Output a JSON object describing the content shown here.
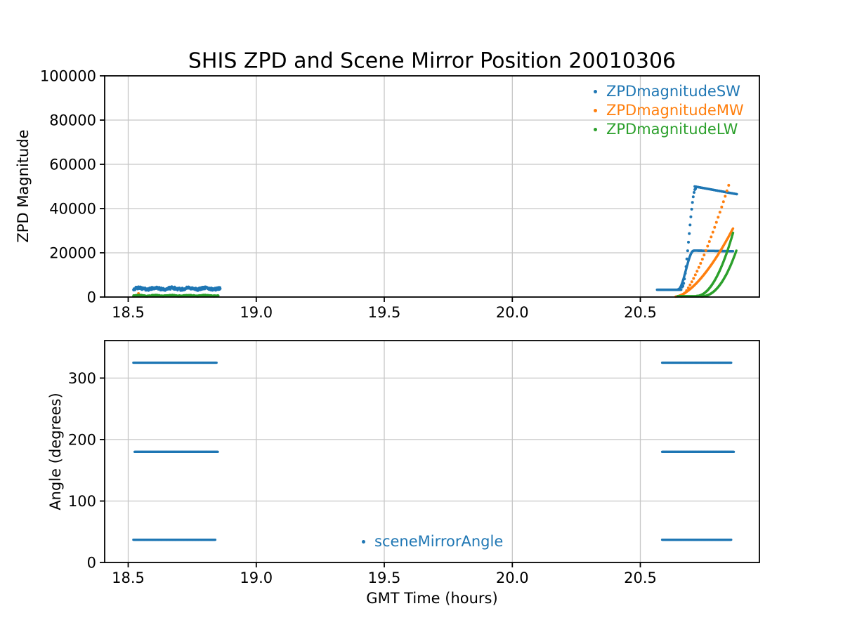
{
  "figure": {
    "background": "#ffffff",
    "spine_color": "#000000",
    "grid_color": "#c6c6c6"
  },
  "chart_data": [
    {
      "type": "scatter",
      "title": "SHIS ZPD and Scene Mirror Position 20010306",
      "ylabel": "ZPD Magnitude",
      "xlabel": "",
      "xlim": [
        18.408,
        20.965
      ],
      "ylim": [
        0,
        100000
      ],
      "xtick_values": [
        18.5,
        19.0,
        19.5,
        20.0,
        20.5
      ],
      "xtick_labels": [
        "18.5",
        "19.0",
        "19.5",
        "20.0",
        "20.5"
      ],
      "ytick_values": [
        0,
        20000,
        40000,
        60000,
        80000,
        100000
      ],
      "ytick_labels": [
        "0",
        "20000",
        "40000",
        "60000",
        "80000",
        "100000"
      ],
      "grid": true,
      "legend_position": "upper-right",
      "legend_frame": false,
      "series": [
        {
          "name": "ZPDmagnitudeSW",
          "color": "#1f77b4",
          "segments": [
            {
              "shape": "noisy",
              "x0": 18.52,
              "x1": 18.86,
              "y": 3800,
              "amp": 1300,
              "n": 300
            },
            {
              "shape": "flat",
              "x0": 20.565,
              "x1": 20.66,
              "y": 3300,
              "n": 70
            },
            {
              "shape": "scurve",
              "x0": 20.648,
              "x1": 20.708,
              "y0": 3500,
              "y1": 20900,
              "n": 70
            },
            {
              "shape": "flat",
              "x0": 20.708,
              "x1": 20.862,
              "y": 21000,
              "y1": 20700,
              "n": 130
            },
            {
              "shape": "scurve",
              "x0": 20.663,
              "x1": 20.716,
              "y0": 4500,
              "y1": 49000,
              "n": 18,
              "r": 2.0
            },
            {
              "shape": "linear",
              "x0": 20.712,
              "x1": 20.877,
              "y0": 50000,
              "y1": 46500,
              "n": 130
            }
          ]
        },
        {
          "name": "ZPDmagnitudeMW",
          "color": "#ff7f0e",
          "segments": [
            {
              "shape": "point",
              "x": 18.54,
              "y": 1600,
              "r": 2.0
            },
            {
              "shape": "pow",
              "x0": 20.638,
              "x1": 20.862,
              "y0": 200,
              "y1": 31000,
              "p": 1.6,
              "n": 160
            },
            {
              "shape": "pow",
              "x0": 20.66,
              "x1": 20.845,
              "y0": 300,
              "y1": 50500,
              "p": 1.35,
              "n": 28,
              "r": 2.0
            }
          ]
        },
        {
          "name": "ZPDmagnitudeLW",
          "color": "#2ca02c",
          "segments": [
            {
              "shape": "noisy",
              "x0": 18.52,
              "x1": 18.852,
              "y": 600,
              "amp": 500,
              "n": 300
            },
            {
              "shape": "flat",
              "x0": 20.645,
              "x1": 20.73,
              "y": 350,
              "n": 60
            },
            {
              "shape": "pow",
              "x0": 20.72,
              "x1": 20.862,
              "y0": 500,
              "y1": 29000,
              "p": 2.0,
              "n": 110
            },
            {
              "shape": "pow",
              "x0": 20.737,
              "x1": 20.875,
              "y0": 300,
              "y1": 21000,
              "p": 2.2,
              "n": 100
            }
          ]
        }
      ]
    },
    {
      "type": "scatter",
      "title": "",
      "ylabel": "Angle (degrees)",
      "xlabel": "GMT Time (hours)",
      "xlim": [
        18.408,
        20.965
      ],
      "ylim": [
        0,
        361
      ],
      "xtick_values": [
        18.5,
        19.0,
        19.5,
        20.0,
        20.5
      ],
      "xtick_labels": [
        "18.5",
        "19.0",
        "19.5",
        "20.0",
        "20.5"
      ],
      "ytick_values": [
        0,
        100,
        200,
        300
      ],
      "ytick_labels": [
        "0",
        "100",
        "200",
        "300"
      ],
      "grid": true,
      "legend_position": "lower-center",
      "legend_frame": false,
      "series": [
        {
          "name": "sceneMirrorAngle",
          "color": "#1f77b4",
          "segments": [
            {
              "shape": "flat",
              "x0": 18.52,
              "x1": 18.845,
              "y": 325,
              "n": 240,
              "r": 1.6
            },
            {
              "shape": "flat",
              "x0": 18.525,
              "x1": 18.85,
              "y": 180,
              "n": 240,
              "r": 1.6
            },
            {
              "shape": "flat",
              "x0": 18.52,
              "x1": 18.84,
              "y": 37,
              "n": 240,
              "r": 1.6
            },
            {
              "shape": "flat",
              "x0": 20.585,
              "x1": 20.855,
              "y": 325,
              "n": 210,
              "r": 1.6
            },
            {
              "shape": "flat",
              "x0": 20.585,
              "x1": 20.865,
              "y": 180,
              "n": 210,
              "r": 1.6
            },
            {
              "shape": "flat",
              "x0": 20.585,
              "x1": 20.855,
              "y": 37,
              "n": 210,
              "r": 1.6
            }
          ]
        }
      ]
    }
  ]
}
